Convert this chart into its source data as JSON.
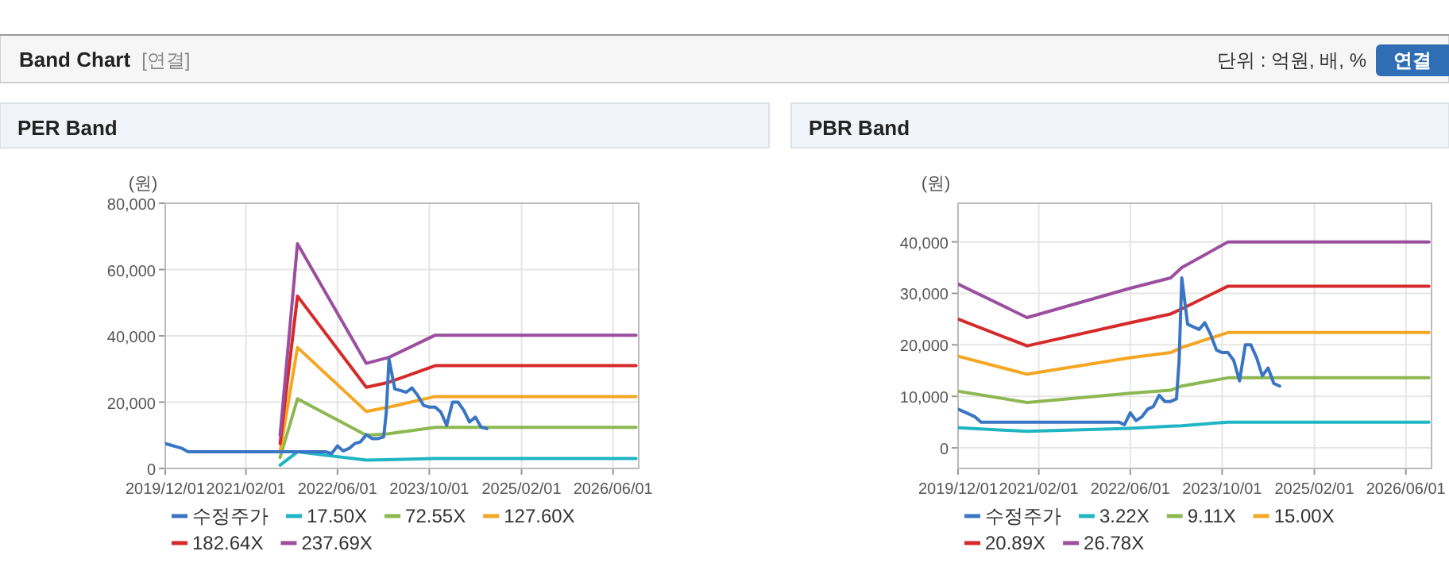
{
  "chart_data": [
    {
      "type": "line",
      "title": "PER Band",
      "ylabel": "(원)",
      "annotations": [
        "Band Chart",
        "[연결]",
        "단위 : 억원, 배, %",
        "연결"
      ],
      "xlim": [
        "2019-12-01",
        "2026-10-15"
      ],
      "ylim": [
        0,
        80000
      ],
      "xticks": [
        {
          "value": "2019-12-01",
          "label": "2019/12/01"
        },
        {
          "value": "2021-02-01",
          "label": "2021/02/01"
        },
        {
          "value": "2022-06-01",
          "label": "2022/06/01"
        },
        {
          "value": "2023-10-01",
          "label": "2023/10/01"
        },
        {
          "value": "2025-02-01",
          "label": "2025/02/01"
        },
        {
          "value": "2026-06-01",
          "label": "2026/06/01"
        }
      ],
      "yticks": [
        {
          "value": 0,
          "label": "0"
        },
        {
          "value": 20000,
          "label": "20,000"
        },
        {
          "value": 40000,
          "label": "40,000"
        },
        {
          "value": 60000,
          "label": "60,000"
        },
        {
          "value": 80000,
          "label": "80,000"
        }
      ],
      "grid": true,
      "legend": "bottom",
      "line_style": "solid",
      "series": [
        {
          "name": "수정주가",
          "color": "#3a75c4",
          "x": [
            "2019-12",
            "2020-01",
            "2020-02",
            "2020-03",
            "2020-04",
            "2022-04",
            "2022-05",
            "2022-06",
            "2022-07",
            "2022-08",
            "2022-09",
            "2022-10",
            "2022-11",
            "2022-12",
            "2023-01",
            "2023-02",
            "2023-02-15",
            "2023-03",
            "2023-04",
            "2023-05",
            "2023-06",
            "2023-07",
            "2023-08",
            "2023-09",
            "2023-10",
            "2023-11",
            "2023-12",
            "2024-01",
            "2024-02",
            "2024-03",
            "2024-04",
            "2024-05",
            "2024-06",
            "2024-07",
            "2024-08"
          ],
          "values": [
            7500,
            7000,
            6500,
            6000,
            5000,
            5000,
            4500,
            6800,
            5300,
            6000,
            7500,
            8000,
            10200,
            9000,
            9000,
            9500,
            17000,
            33000,
            24000,
            23500,
            23000,
            24300,
            22000,
            19000,
            18500,
            18500,
            17000,
            13000,
            20000,
            20000,
            17500,
            14000,
            15500,
            12500,
            12000
          ]
        },
        {
          "name": "17.50X",
          "color": "#1fb5c3",
          "x": [
            "2021-08",
            "2021-11",
            "2022-11",
            "2023-11",
            "2026-10"
          ],
          "values": [
            1000,
            5000,
            2500,
            3000,
            3000
          ]
        },
        {
          "name": "72.55X",
          "color": "#8db851",
          "x": [
            "2021-08",
            "2021-11",
            "2022-11",
            "2023-03",
            "2023-11",
            "2026-10"
          ],
          "values": [
            3300,
            21000,
            10000,
            10500,
            12400,
            12400
          ]
        },
        {
          "name": "127.60X",
          "color": "#f5a623",
          "x": [
            "2021-08",
            "2021-11",
            "2022-11",
            "2023-03",
            "2023-11",
            "2026-10"
          ],
          "values": [
            5000,
            36500,
            17200,
            18500,
            21700,
            21700
          ]
        },
        {
          "name": "182.64X",
          "color": "#d62a2a",
          "x": [
            "2021-08",
            "2021-11",
            "2022-11",
            "2023-03",
            "2023-11",
            "2026-10"
          ],
          "values": [
            7500,
            52000,
            24500,
            26000,
            31000,
            31000
          ]
        },
        {
          "name": "237.69X",
          "color": "#9b4f9e",
          "x": [
            "2021-08",
            "2021-11",
            "2022-11",
            "2023-03",
            "2023-11",
            "2026-10"
          ],
          "values": [
            10000,
            67800,
            31700,
            33500,
            40200,
            40200
          ]
        }
      ]
    },
    {
      "type": "line",
      "title": "PBR Band",
      "ylabel": "(원)",
      "xlim": [
        "2019-12-01",
        "2026-10-15"
      ],
      "ylim": [
        -4000,
        47500
      ],
      "xticks": [
        {
          "value": "2019-12-01",
          "label": "2019/12/01"
        },
        {
          "value": "2021-02-01",
          "label": "2021/02/01"
        },
        {
          "value": "2022-06-01",
          "label": "2022/06/01"
        },
        {
          "value": "2023-10-01",
          "label": "2023/10/01"
        },
        {
          "value": "2025-02-01",
          "label": "2025/02/01"
        },
        {
          "value": "2026-06-01",
          "label": "2026/06/01"
        }
      ],
      "yticks": [
        {
          "value": 0,
          "label": "0"
        },
        {
          "value": 10000,
          "label": "10,000"
        },
        {
          "value": 20000,
          "label": "20,000"
        },
        {
          "value": 30000,
          "label": "30,000"
        },
        {
          "value": 40000,
          "label": "40,000"
        }
      ],
      "grid": true,
      "legend": "bottom",
      "line_style": "solid",
      "series": [
        {
          "name": "수정주가",
          "color": "#3a75c4",
          "x": [
            "2019-12",
            "2020-01",
            "2020-02",
            "2020-03",
            "2020-04",
            "2022-04",
            "2022-05",
            "2022-06",
            "2022-07",
            "2022-08",
            "2022-09",
            "2022-10",
            "2022-11",
            "2022-12",
            "2023-01",
            "2023-02",
            "2023-02-15",
            "2023-03",
            "2023-04",
            "2023-05",
            "2023-06",
            "2023-07",
            "2023-08",
            "2023-09",
            "2023-10",
            "2023-11",
            "2023-12",
            "2024-01",
            "2024-02",
            "2024-03",
            "2024-04",
            "2024-05",
            "2024-06",
            "2024-07",
            "2024-08"
          ],
          "values": [
            7500,
            7000,
            6500,
            6000,
            5000,
            5000,
            4500,
            6800,
            5300,
            6000,
            7500,
            8000,
            10200,
            9000,
            9000,
            9500,
            17000,
            33000,
            24000,
            23500,
            23000,
            24300,
            22000,
            19000,
            18500,
            18500,
            17000,
            13000,
            20000,
            20000,
            17500,
            14000,
            15500,
            12500,
            12000
          ]
        },
        {
          "name": "3.22X",
          "color": "#1fb5c3",
          "x": [
            "2019-12",
            "2020-12",
            "2022-06",
            "2023-01",
            "2023-03",
            "2023-11",
            "2026-10"
          ],
          "values": [
            3900,
            3200,
            3800,
            4200,
            4300,
            5000,
            5000
          ]
        },
        {
          "name": "9.11X",
          "color": "#8db851",
          "x": [
            "2019-12",
            "2020-12",
            "2022-06",
            "2023-01",
            "2023-03",
            "2023-11",
            "2026-10"
          ],
          "values": [
            11000,
            8800,
            10600,
            11200,
            12000,
            13600,
            13600
          ]
        },
        {
          "name": "15.00X",
          "color": "#f5a623",
          "x": [
            "2019-12",
            "2020-12",
            "2022-06",
            "2023-01",
            "2023-03",
            "2023-11",
            "2026-10"
          ],
          "values": [
            17800,
            14300,
            17500,
            18500,
            19500,
            22400,
            22400
          ]
        },
        {
          "name": "20.89X",
          "color": "#d62a2a",
          "x": [
            "2019-12",
            "2020-12",
            "2022-06",
            "2023-01",
            "2023-03",
            "2023-11",
            "2026-10"
          ],
          "values": [
            25000,
            19800,
            24300,
            26000,
            27000,
            31400,
            31400
          ]
        },
        {
          "name": "26.78X",
          "color": "#9b4f9e",
          "x": [
            "2019-12",
            "2020-12",
            "2022-06",
            "2023-01",
            "2023-03",
            "2023-11",
            "2026-10"
          ],
          "values": [
            31800,
            25300,
            31000,
            33000,
            35000,
            40000,
            40000
          ]
        }
      ]
    }
  ]
}
